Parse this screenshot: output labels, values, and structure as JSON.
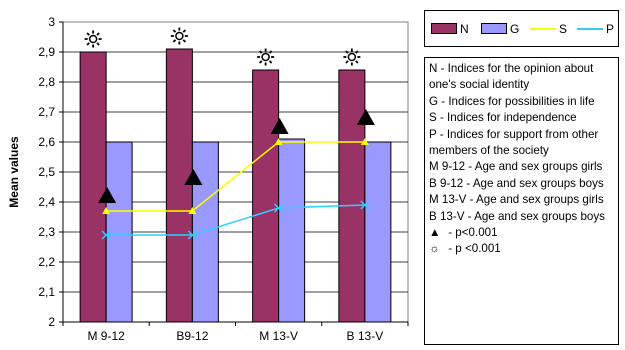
{
  "chart_data": {
    "type": "bar",
    "categories": [
      "M 9-12",
      "B9-12",
      "M 13-V",
      "B 13-V"
    ],
    "ylabel": "Mean values",
    "xlabel": "",
    "ylim": [
      2,
      3
    ],
    "yticks": [
      "2",
      "2,1",
      "2,2",
      "2,3",
      "2,4",
      "2,5",
      "2,6",
      "2,7",
      "2,8",
      "2,9",
      "3"
    ],
    "grid": true,
    "series": [
      {
        "name": "N",
        "kind": "bar",
        "color": "#993366",
        "values": [
          2.9,
          2.91,
          2.84,
          2.84
        ]
      },
      {
        "name": "G",
        "kind": "bar",
        "color": "#9999ff",
        "values": [
          2.6,
          2.6,
          2.61,
          2.6
        ]
      },
      {
        "name": "S",
        "kind": "line",
        "color": "#ffff00",
        "marker": "triangle",
        "values": [
          2.37,
          2.37,
          2.6,
          2.6
        ]
      },
      {
        "name": "P",
        "kind": "line",
        "color": "#33ccff",
        "marker": "x",
        "values": [
          2.29,
          2.29,
          2.38,
          2.39
        ]
      }
    ],
    "annotations": {
      "sun_above_N": [
        true,
        true,
        true,
        true
      ],
      "triangle_markers": [
        2.42,
        2.48,
        2.65,
        2.68
      ]
    },
    "legend_position": "right"
  },
  "legend": {
    "items": [
      {
        "label": "N",
        "color": "#993366",
        "kind": "bar"
      },
      {
        "label": "G",
        "color": "#9999ff",
        "kind": "bar"
      },
      {
        "label": "S",
        "color": "#ffff00",
        "kind": "line"
      },
      {
        "label": "P",
        "color": "#33ccff",
        "kind": "line"
      }
    ]
  },
  "key": {
    "lines": [
      "N - Indices for the opinion about one's social identity",
      "G - Indices for possibilities in life",
      "S - Indices for independence",
      "P - Indices for support from other members of the society",
      "M 9-12 - Age and sex groups girls",
      "B 9-12 - Age and sex groups boys",
      "M 13-V - Age and sex groups girls",
      "B 13-V - Age and sex groups boys"
    ],
    "triangle_note": " - p<0.001",
    "sun_note": " - p <0.001"
  }
}
